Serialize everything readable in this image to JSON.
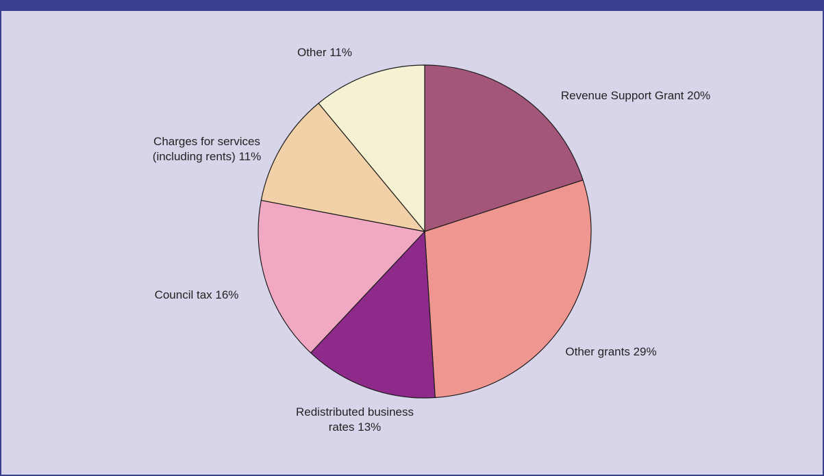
{
  "chart_data": {
    "type": "pie",
    "title": "",
    "slices": [
      {
        "label": "Revenue Support Grant 20%",
        "lines": [
          "Revenue Support Grant 20%"
        ],
        "value": 20,
        "color": "#a45679"
      },
      {
        "label": "Other grants 29%",
        "lines": [
          "Other grants 29%"
        ],
        "value": 29,
        "color": "#ef9691"
      },
      {
        "label": "Redistributed business rates 13%",
        "lines": [
          "Redistributed business",
          "rates 13%"
        ],
        "value": 13,
        "color": "#8e2b8a"
      },
      {
        "label": "Council tax 16%",
        "lines": [
          "Council tax 16%"
        ],
        "value": 16,
        "color": "#f1a9c3"
      },
      {
        "label": "Charges for services (including rents) 11%",
        "lines": [
          "Charges for services",
          "(including rents) 11%"
        ],
        "value": 11,
        "color": "#f3d1a8"
      },
      {
        "label": "Other 11%",
        "lines": [
          "Other 11%"
        ],
        "value": 11,
        "color": "#f4f2d3"
      }
    ],
    "legend": "none",
    "start": "top, clockwise"
  },
  "colors": {
    "background": "#d8d5ea",
    "frame": "#3a3f8f"
  }
}
